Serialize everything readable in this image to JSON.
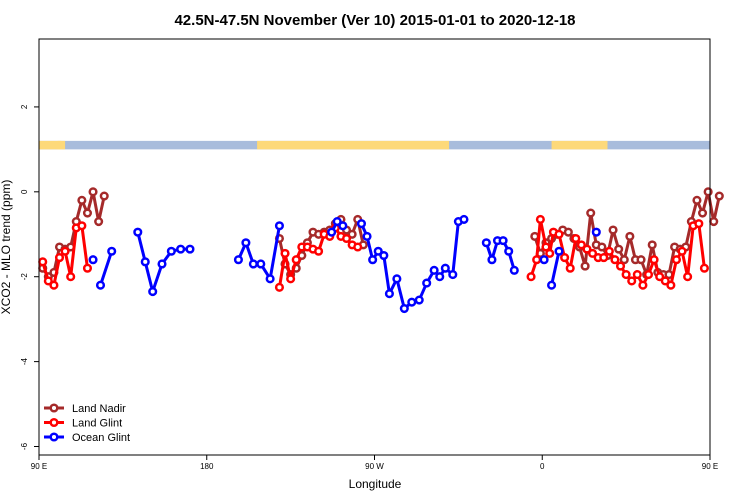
{
  "chart_data": {
    "type": "line",
    "title": "42.5N-47.5N November (Ver 10)   2015-01-01 to 2020-12-18",
    "xlabel": "Longitude",
    "ylabel": "XCO2 - MLO trend (ppm)",
    "xlim": [
      90,
      450
    ],
    "ylim": [
      -6.2,
      3.6
    ],
    "x_ticks": [
      {
        "value": 90,
        "label": "90 E"
      },
      {
        "value": 180,
        "label": "180"
      },
      {
        "value": 270,
        "label": "90 W"
      },
      {
        "value": 360,
        "label": "0"
      },
      {
        "value": 450,
        "label": "90 E"
      },
      {
        "value": 540,
        "label": "180"
      }
    ],
    "y_ticks": [
      {
        "value": 2,
        "label": "2"
      },
      {
        "value": 0,
        "label": "0"
      },
      {
        "value": -2,
        "label": "-2"
      },
      {
        "value": -4,
        "label": "-4"
      },
      {
        "value": -6,
        "label": "-6"
      }
    ],
    "land_band": {
      "y_range": [
        1.0,
        1.2
      ],
      "land_color": "#fdd97a",
      "ocean_color": "#a8bcdc",
      "land_intervals": [
        [
          90,
          102
        ],
        [
          100,
          104
        ],
        [
          207,
          310
        ],
        [
          365,
          395
        ],
        [
          460,
          500
        ],
        [
          534,
          540
        ]
      ]
    },
    "legend_position": "bottom-left",
    "series": [
      {
        "name": "Land Nadir",
        "color": "#a52a2a",
        "segments": [
          [
            [
              92,
              -1.8
            ],
            [
              95,
              -2.0
            ],
            [
              98,
              -1.9
            ],
            [
              101,
              -1.3
            ],
            [
              104,
              -1.35
            ],
            [
              107,
              -1.3
            ],
            [
              110,
              -0.7
            ],
            [
              113,
              -0.2
            ],
            [
              116,
              -0.5
            ],
            [
              119,
              0.0
            ],
            [
              122,
              -0.7
            ],
            [
              125,
              -0.1
            ]
          ],
          [
            [
              219,
              -1.1
            ],
            [
              222,
              -1.7
            ],
            [
              225,
              -1.95
            ],
            [
              228,
              -1.8
            ],
            [
              231,
              -1.5
            ],
            [
              234,
              -1.2
            ],
            [
              237,
              -0.95
            ],
            [
              240,
              -1.0
            ],
            [
              243,
              -0.95
            ],
            [
              246,
              -0.9
            ],
            [
              249,
              -0.75
            ],
            [
              252,
              -0.65
            ],
            [
              255,
              -0.9
            ],
            [
              258,
              -1.0
            ],
            [
              261,
              -0.65
            ],
            [
              264,
              -1.25
            ]
          ],
          [
            [
              356,
              -1.05
            ],
            [
              359,
              -1.45
            ],
            [
              362,
              -1.2
            ],
            [
              365,
              -1.1
            ],
            [
              368,
              -1.0
            ],
            [
              371,
              -0.9
            ],
            [
              374,
              -0.95
            ],
            [
              377,
              -1.1
            ],
            [
              380,
              -1.3
            ],
            [
              383,
              -1.75
            ],
            [
              386,
              -0.5
            ],
            [
              389,
              -1.25
            ],
            [
              392,
              -1.3
            ],
            [
              395,
              -1.5
            ],
            [
              398,
              -0.9
            ],
            [
              401,
              -1.35
            ],
            [
              404,
              -1.6
            ],
            [
              407,
              -1.05
            ],
            [
              410,
              -1.6
            ],
            [
              413,
              -1.6
            ],
            [
              416,
              -1.95
            ],
            [
              419,
              -1.25
            ],
            [
              422,
              -1.9
            ],
            [
              425,
              -1.95
            ],
            [
              428,
              -1.95
            ],
            [
              431,
              -1.3
            ],
            [
              434,
              -1.35
            ],
            [
              437,
              -1.3
            ],
            [
              440,
              -0.7
            ],
            [
              443,
              -0.2
            ],
            [
              446,
              -0.5
            ],
            [
              449,
              0.0
            ],
            [
              452,
              -0.7
            ],
            [
              455,
              -0.1
            ]
          ]
        ]
      },
      {
        "name": "Land Glint",
        "color": "#ff0000",
        "segments": [
          [
            [
              92,
              -1.65
            ],
            [
              95,
              -2.1
            ],
            [
              98,
              -2.2
            ],
            [
              101,
              -1.55
            ],
            [
              104,
              -1.4
            ],
            [
              107,
              -2.0
            ],
            [
              110,
              -0.85
            ],
            [
              113,
              -0.8
            ],
            [
              116,
              -1.8
            ]
          ],
          [
            [
              219,
              -2.25
            ],
            [
              222,
              -1.45
            ],
            [
              225,
              -2.05
            ],
            [
              228,
              -1.6
            ],
            [
              231,
              -1.3
            ],
            [
              234,
              -1.3
            ],
            [
              237,
              -1.35
            ],
            [
              240,
              -1.4
            ],
            [
              243,
              -1.0
            ],
            [
              246,
              -1.05
            ],
            [
              249,
              -0.85
            ],
            [
              252,
              -1.05
            ],
            [
              255,
              -1.1
            ],
            [
              258,
              -1.25
            ],
            [
              261,
              -1.3
            ]
          ],
          [
            [
              354,
              -2.0
            ],
            [
              357,
              -1.6
            ],
            [
              359,
              -0.65
            ],
            [
              362,
              -1.3
            ],
            [
              364,
              -1.45
            ],
            [
              366,
              -0.95
            ],
            [
              369,
              -1.0
            ],
            [
              372,
              -1.55
            ],
            [
              375,
              -1.8
            ],
            [
              378,
              -1.1
            ],
            [
              381,
              -1.25
            ],
            [
              384,
              -1.35
            ],
            [
              387,
              -1.45
            ],
            [
              390,
              -1.55
            ],
            [
              393,
              -1.55
            ],
            [
              396,
              -1.4
            ],
            [
              399,
              -1.6
            ],
            [
              402,
              -1.75
            ],
            [
              405,
              -1.95
            ],
            [
              408,
              -2.1
            ],
            [
              411,
              -1.95
            ],
            [
              414,
              -2.2
            ],
            [
              417,
              -1.95
            ],
            [
              420,
              -1.6
            ],
            [
              423,
              -2.0
            ],
            [
              426,
              -2.1
            ],
            [
              429,
              -2.2
            ],
            [
              432,
              -1.6
            ],
            [
              435,
              -1.4
            ],
            [
              438,
              -2.0
            ],
            [
              441,
              -0.8
            ],
            [
              444,
              -0.75
            ],
            [
              447,
              -1.8
            ]
          ]
        ]
      },
      {
        "name": "Ocean Glint",
        "color": "#0000ff",
        "segments": [
          [
            [
              119,
              -1.6
            ]
          ],
          [
            [
              123,
              -2.2
            ],
            [
              129,
              -1.4
            ]
          ],
          [
            [
              143,
              -0.95
            ],
            [
              147,
              -1.65
            ],
            [
              151,
              -2.35
            ],
            [
              156,
              -1.7
            ],
            [
              161,
              -1.4
            ],
            [
              166,
              -1.35
            ],
            [
              171,
              -1.35
            ]
          ],
          [
            [
              197,
              -1.6
            ],
            [
              201,
              -1.2
            ],
            [
              205,
              -1.7
            ],
            [
              209,
              -1.7
            ],
            [
              214,
              -2.05
            ],
            [
              219,
              -0.8
            ]
          ],
          [
            [
              247,
              -0.95
            ],
            [
              250,
              -0.7
            ],
            [
              253,
              -0.8
            ]
          ],
          [
            [
              263,
              -0.75
            ],
            [
              266,
              -1.05
            ],
            [
              269,
              -1.6
            ],
            [
              272,
              -1.4
            ],
            [
              275,
              -1.5
            ],
            [
              278,
              -2.4
            ],
            [
              282,
              -2.05
            ],
            [
              286,
              -2.75
            ],
            [
              290,
              -2.6
            ],
            [
              294,
              -2.55
            ],
            [
              298,
              -2.15
            ],
            [
              302,
              -1.85
            ],
            [
              305,
              -2.0
            ],
            [
              308,
              -1.8
            ],
            [
              312,
              -1.95
            ],
            [
              315,
              -0.7
            ],
            [
              318,
              -0.65
            ]
          ],
          [
            [
              330,
              -1.2
            ],
            [
              333,
              -1.6
            ],
            [
              336,
              -1.15
            ],
            [
              339,
              -1.15
            ],
            [
              342,
              -1.4
            ],
            [
              345,
              -1.85
            ]
          ],
          [
            [
              361,
              -1.6
            ]
          ],
          [
            [
              365,
              -2.2
            ],
            [
              369,
              -1.4
            ]
          ],
          [
            [
              389,
              -0.95
            ]
          ]
        ]
      }
    ]
  }
}
